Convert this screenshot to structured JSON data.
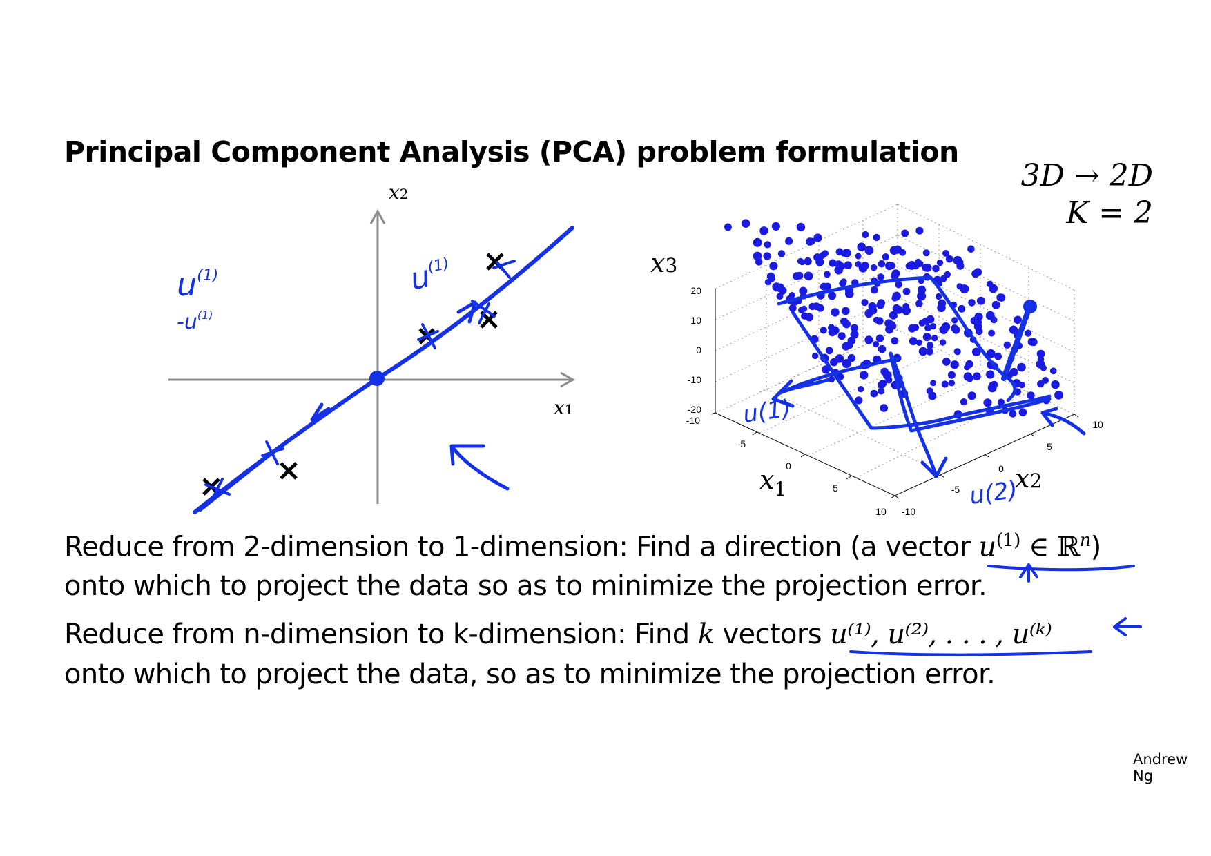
{
  "slide": {
    "title": "Principal Component Analysis (PCA) problem formulation",
    "credit": "Andrew Ng"
  },
  "left_plot": {
    "x_axis_label": "x",
    "x_axis_sub": "1",
    "y_axis_label": "x",
    "y_axis_sub": "2",
    "handwritten_u": "u",
    "handwritten_sup": "(1)",
    "handwritten_neg_u": "-u",
    "handwritten_neg_sup": "(1)"
  },
  "right_plot": {
    "annotation_line1": "3D → 2D",
    "annotation_line2": "K = 2",
    "x1_label": "x",
    "x1_sub": "1",
    "x2_label": "x",
    "x2_sub": "2",
    "x3_label": "x",
    "x3_sub": "3",
    "z_ticks": [
      "20",
      "10",
      "0",
      "-10",
      "-20"
    ],
    "x1_ticks": [
      "-10",
      "-5",
      "0",
      "5",
      "10"
    ],
    "x2_ticks": [
      "-10",
      "-5",
      "0",
      "5",
      "10"
    ],
    "handwritten_u1": "u(1)",
    "handwritten_u2": "u(2)"
  },
  "text": {
    "line1_prefix": "Reduce from 2-dimension to 1-dimension: Find a direction (a vector ",
    "line1_math": "u",
    "line1_sup": "(1)",
    "line1_set": " ∈ ℝ",
    "line1_set_sup": "n",
    "line1_suffix": ")",
    "line2": "onto which to project the data so as to minimize the projection error.",
    "line3_prefix": "Reduce from n-dimension to k-dimension: Find ",
    "line3_k": "k",
    "line3_mid": " vectors ",
    "line3_vectors": "u⁽¹⁾, u⁽²⁾, . . . , u⁽ᵏ⁾",
    "line4": "onto which to project the data, so as to minimize the projection error."
  }
}
